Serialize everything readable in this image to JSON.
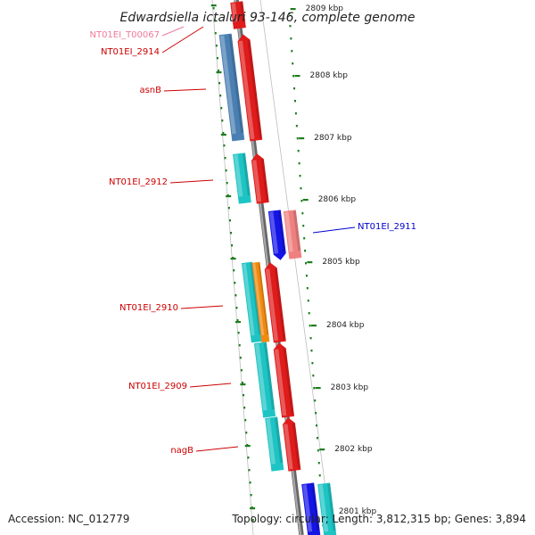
{
  "title": "Edwardsiella ictaluri 93-146, complete genome",
  "footer": {
    "accession": "Accession: NC_012779",
    "summary": "Topology: circular; Length: 3,812,315 bp; Genes: 3,894"
  },
  "colors": {
    "backbone": "#8a8a8a",
    "tick": "#1e7d1e",
    "red": "#e01b1b",
    "cyan": "#1ec4c4",
    "steelblue": "#4a7fb3",
    "blue": "#1414e6",
    "salmon": "#ef8080",
    "orange": "#f08a10",
    "label_red": "#cc0000",
    "label_pink": "#f07a9a",
    "label_blue": "#0000cc"
  },
  "position_ticks": [
    {
      "id": "2809",
      "label": "2809 kbp"
    },
    {
      "id": "2808",
      "label": "2808 kbp"
    },
    {
      "id": "2807",
      "label": "2807 kbp"
    },
    {
      "id": "2806",
      "label": "2806 kbp"
    },
    {
      "id": "2805",
      "label": "2805 kbp"
    },
    {
      "id": "2804",
      "label": "2804 kbp"
    },
    {
      "id": "2803",
      "label": "2803 kbp"
    },
    {
      "id": "2802",
      "label": "2802 kbp"
    },
    {
      "id": "2801",
      "label": "2801 kbp"
    }
  ],
  "gene_labels": [
    {
      "id": "t00067",
      "text": "NT01EI_T00067",
      "color": "label_pink"
    },
    {
      "id": "g2914",
      "text": "NT01EI_2914",
      "color": "label_red"
    },
    {
      "id": "asnb",
      "text": "asnB",
      "color": "label_red"
    },
    {
      "id": "g2912",
      "text": "NT01EI_2912",
      "color": "label_red"
    },
    {
      "id": "g2911",
      "text": "NT01EI_2911",
      "color": "label_blue"
    },
    {
      "id": "g2910",
      "text": "NT01EI_2910",
      "color": "label_red"
    },
    {
      "id": "g2909",
      "text": "NT01EI_2909",
      "color": "label_red"
    },
    {
      "id": "nagb",
      "text": "nagB",
      "color": "label_red"
    }
  ]
}
